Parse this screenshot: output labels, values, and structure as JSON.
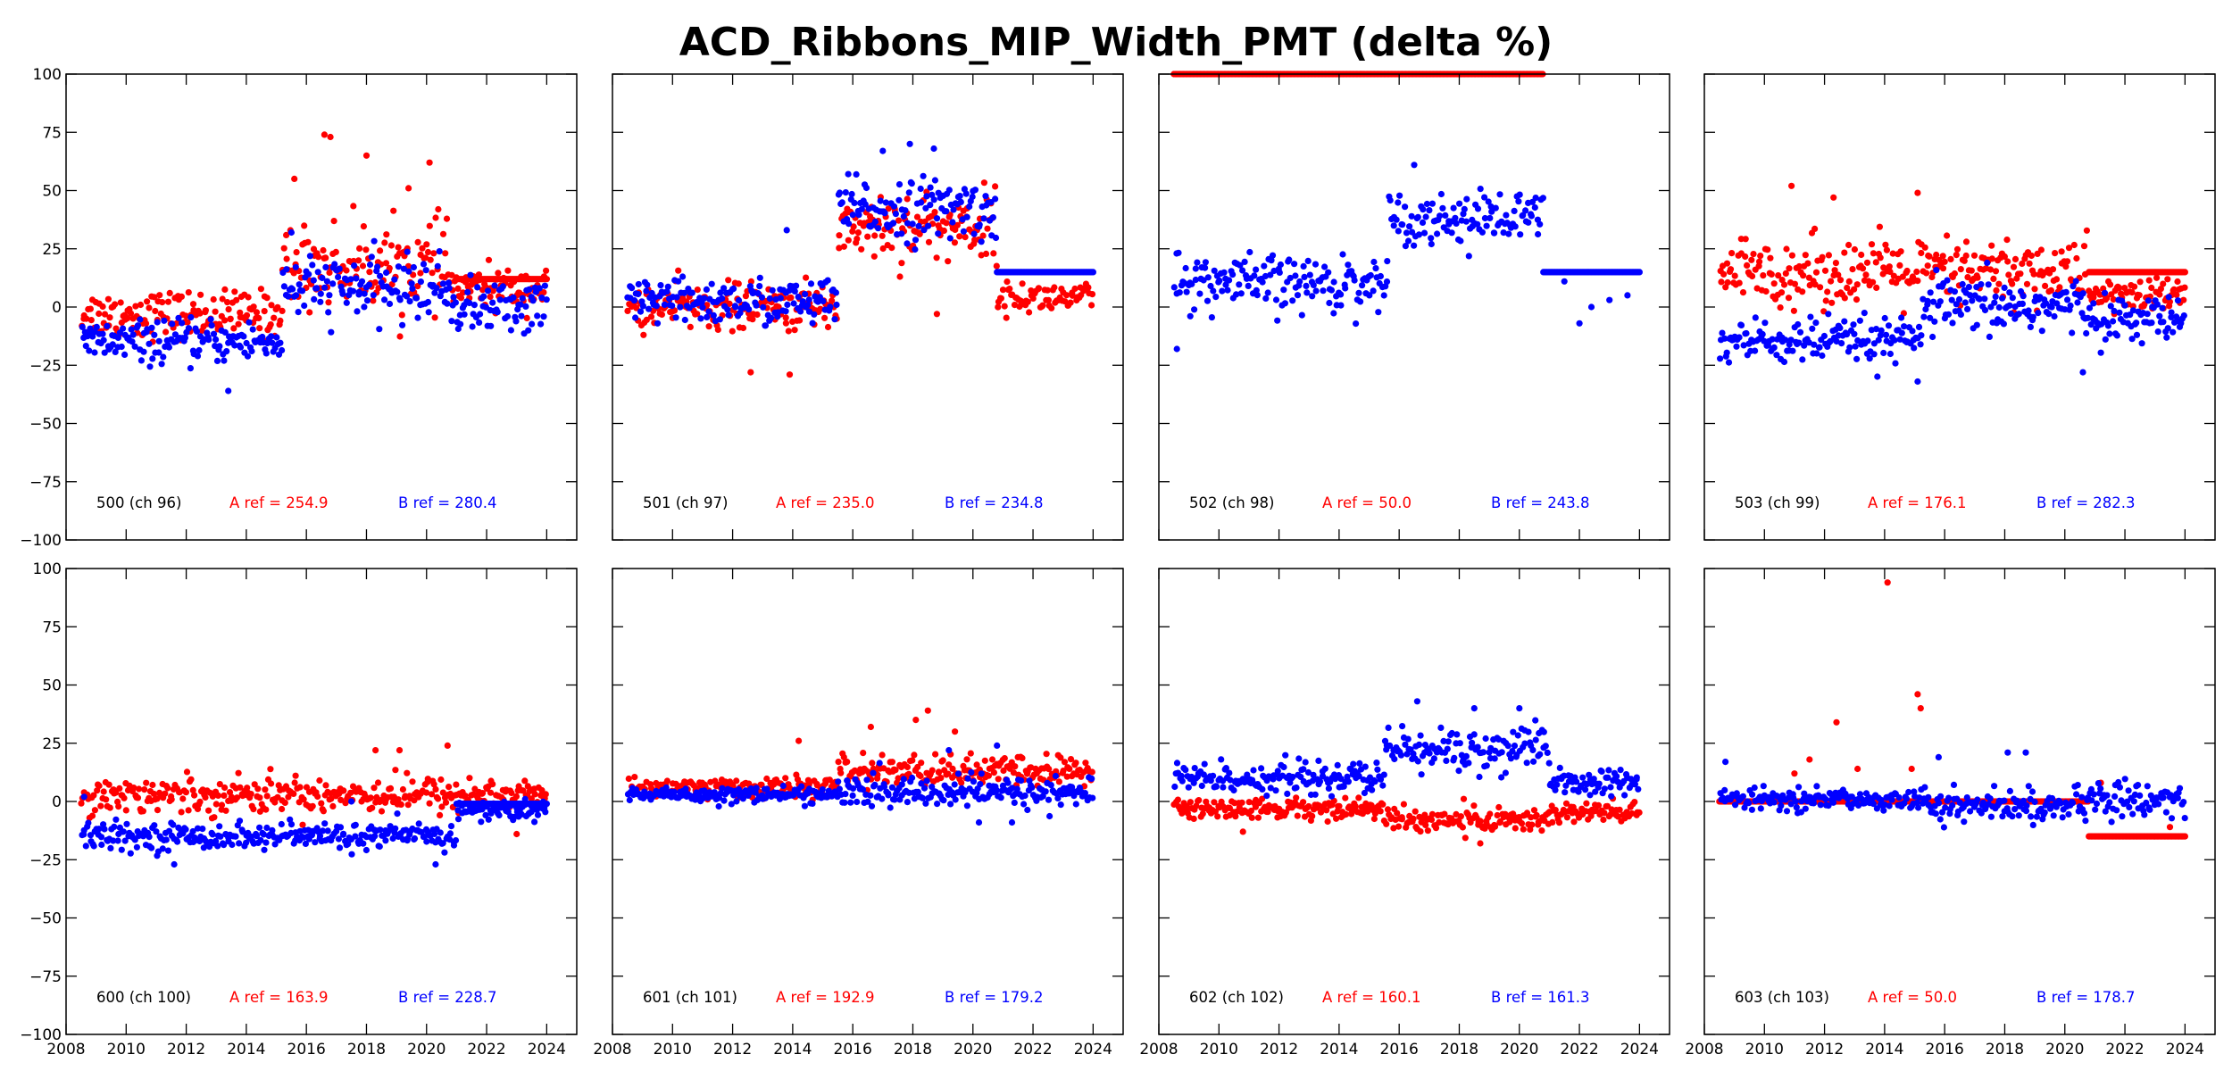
{
  "chart_data": {
    "type": "scatter",
    "title": "ACD_Ribbons_MIP_Width_PMT (delta %)",
    "layout": "2 rows x 4 columns of subplots",
    "xlim": [
      2008,
      2025
    ],
    "ylim": [
      -100,
      100
    ],
    "xticks": [
      2008,
      2010,
      2012,
      2014,
      2016,
      2018,
      2020,
      2022,
      2024
    ],
    "yticks": [
      -100,
      -75,
      -50,
      -25,
      0,
      25,
      50,
      75,
      100
    ],
    "xtick_labels_shown": "bottom row only",
    "ytick_labels_shown": "first column only",
    "grid": false,
    "series_colors": {
      "A": "#ff0000",
      "B": "#0000ff"
    },
    "panels": [
      {
        "label": "500 (ch 96)",
        "a_ref": "A ref = 254.9",
        "b_ref": "B ref = 280.4",
        "A": {
          "segments": [
            {
              "x": [
                2008.5,
                2015.2
              ],
              "mean": -3,
              "spread": 9
            },
            {
              "x": [
                2015.2,
                2020.8
              ],
              "mean": 18,
              "spread": 16
            },
            {
              "x": [
                2020.8,
                2024.0
              ],
              "mean": 8,
              "spread": 8
            }
          ],
          "flat": [
            {
              "x": [
                2021.0,
                2024.0
              ],
              "y": 12
            }
          ],
          "outliers": [
            [
              2016.6,
              74
            ],
            [
              2016.8,
              73
            ],
            [
              2018.0,
              65
            ],
            [
              2020.1,
              62
            ],
            [
              2015.6,
              55
            ],
            [
              2019.4,
              51
            ]
          ]
        },
        "B": {
          "segments": [
            {
              "x": [
                2008.5,
                2015.2
              ],
              "mean": -15,
              "spread": 8
            },
            {
              "x": [
                2015.2,
                2020.8
              ],
              "mean": 8,
              "spread": 12
            },
            {
              "x": [
                2020.8,
                2024.0
              ],
              "mean": 0,
              "spread": 10
            }
          ],
          "flat": [],
          "outliers": [
            [
              2013.4,
              -36
            ],
            [
              2015.5,
              32
            ]
          ]
        }
      },
      {
        "label": "501 (ch 97)",
        "a_ref": "A ref = 235.0",
        "b_ref": "B ref = 234.8",
        "A": {
          "segments": [
            {
              "x": [
                2008.5,
                2015.5
              ],
              "mean": 0,
              "spread": 9
            },
            {
              "x": [
                2015.5,
                2020.8
              ],
              "mean": 35,
              "spread": 14
            },
            {
              "x": [
                2020.8,
                2024.0
              ],
              "mean": 4,
              "spread": 6
            }
          ],
          "flat": [],
          "outliers": [
            [
              2012.6,
              -28
            ],
            [
              2013.9,
              -29
            ],
            [
              2018.8,
              -3
            ]
          ]
        },
        "B": {
          "segments": [
            {
              "x": [
                2008.5,
                2015.5
              ],
              "mean": 2,
              "spread": 9
            },
            {
              "x": [
                2015.5,
                2020.8
              ],
              "mean": 42,
              "spread": 12
            }
          ],
          "flat": [
            {
              "x": [
                2020.8,
                2024.0
              ],
              "y": 15
            }
          ],
          "outliers": [
            [
              2017.9,
              70
            ],
            [
              2017.0,
              67
            ],
            [
              2018.7,
              68
            ],
            [
              2013.8,
              33
            ]
          ]
        }
      },
      {
        "label": "502 (ch 98)",
        "a_ref": "A ref = 50.0",
        "b_ref": "B ref = 243.8",
        "A": {
          "segments": [],
          "flat": [
            {
              "x": [
                2008.5,
                2020.8
              ],
              "y": 100
            }
          ],
          "outliers": []
        },
        "B": {
          "segments": [
            {
              "x": [
                2008.5,
                2015.6
              ],
              "mean": 10,
              "spread": 11
            },
            {
              "x": [
                2015.6,
                2020.8
              ],
              "mean": 38,
              "spread": 10
            }
          ],
          "flat": [
            {
              "x": [
                2020.8,
                2024.0
              ],
              "y": 15
            }
          ],
          "outliers": [
            [
              2008.6,
              -18
            ],
            [
              2016.5,
              61
            ],
            [
              2021.5,
              11
            ],
            [
              2022.0,
              -7
            ],
            [
              2022.4,
              0
            ],
            [
              2023.0,
              3
            ],
            [
              2023.6,
              5
            ]
          ]
        }
      },
      {
        "label": "503 (ch 99)",
        "a_ref": "A ref = 176.1",
        "b_ref": "B ref = 282.3",
        "A": {
          "segments": [
            {
              "x": [
                2008.5,
                2020.8
              ],
              "mean": 15,
              "spread": 13
            },
            {
              "x": [
                2020.8,
                2024.0
              ],
              "mean": 5,
              "spread": 7
            }
          ],
          "flat": [
            {
              "x": [
                2020.8,
                2024.0
              ],
              "y": 15
            }
          ],
          "outliers": [
            [
              2010.9,
              52
            ],
            [
              2015.1,
              49
            ],
            [
              2012.3,
              47
            ]
          ]
        },
        "B": {
          "segments": [
            {
              "x": [
                2008.5,
                2015.2
              ],
              "mean": -15,
              "spread": 9
            },
            {
              "x": [
                2015.2,
                2020.8
              ],
              "mean": 0,
              "spread": 11
            },
            {
              "x": [
                2020.8,
                2024.0
              ],
              "mean": -5,
              "spread": 8
            }
          ],
          "flat": [],
          "outliers": [
            [
              2015.1,
              -32
            ],
            [
              2020.6,
              -28
            ]
          ]
        }
      },
      {
        "label": "600 (ch 100)",
        "a_ref": "A ref = 163.9",
        "b_ref": "B ref = 228.7",
        "A": {
          "segments": [
            {
              "x": [
                2008.5,
                2024.0
              ],
              "mean": 3,
              "spread": 7
            }
          ],
          "flat": [],
          "outliers": [
            [
              2020.7,
              24
            ],
            [
              2018.3,
              22
            ],
            [
              2019.1,
              22
            ],
            [
              2023.0,
              -14
            ]
          ]
        },
        "B": {
          "segments": [
            {
              "x": [
                2008.5,
                2021.0
              ],
              "mean": -15,
              "spread": 5
            },
            {
              "x": [
                2021.0,
                2024.0
              ],
              "mean": -4,
              "spread": 4
            }
          ],
          "flat": [
            {
              "x": [
                2021.0,
                2024.0
              ],
              "y": -1
            }
          ],
          "outliers": [
            [
              2011.6,
              -27
            ],
            [
              2020.3,
              -27
            ],
            [
              2008.6,
              2
            ],
            [
              2017.5,
              0
            ]
          ]
        }
      },
      {
        "label": "601 (ch 101)",
        "a_ref": "A ref = 192.9",
        "b_ref": "B ref = 179.2",
        "A": {
          "segments": [
            {
              "x": [
                2008.5,
                2015.5
              ],
              "mean": 6,
              "spread": 4
            },
            {
              "x": [
                2015.5,
                2024.0
              ],
              "mean": 13,
              "spread": 6
            }
          ],
          "flat": [],
          "outliers": [
            [
              2018.5,
              39
            ],
            [
              2018.1,
              35
            ],
            [
              2016.6,
              32
            ],
            [
              2019.4,
              30
            ],
            [
              2014.2,
              26
            ]
          ]
        },
        "B": {
          "segments": [
            {
              "x": [
                2008.5,
                2015.5
              ],
              "mean": 3,
              "spread": 3
            },
            {
              "x": [
                2015.5,
                2024.0
              ],
              "mean": 4,
              "spread": 6
            }
          ],
          "flat": [],
          "outliers": [
            [
              2020.8,
              24
            ],
            [
              2019.2,
              22
            ],
            [
              2020.2,
              -9
            ],
            [
              2021.3,
              -9
            ]
          ]
        }
      },
      {
        "label": "602 (ch 102)",
        "a_ref": "A ref = 160.1",
        "b_ref": "B ref = 161.3",
        "A": {
          "segments": [
            {
              "x": [
                2008.5,
                2015.5
              ],
              "mean": -3,
              "spread": 4
            },
            {
              "x": [
                2015.5,
                2021.0
              ],
              "mean": -8,
              "spread": 5
            },
            {
              "x": [
                2021.0,
                2024.0
              ],
              "mean": -5,
              "spread": 5
            }
          ],
          "flat": [],
          "outliers": [
            [
              2018.7,
              -18
            ],
            [
              2010.8,
              -13
            ]
          ]
        },
        "B": {
          "segments": [
            {
              "x": [
                2008.5,
                2015.5
              ],
              "mean": 10,
              "spread": 6
            },
            {
              "x": [
                2015.5,
                2021.0
              ],
              "mean": 22,
              "spread": 9
            },
            {
              "x": [
                2021.0,
                2024.0
              ],
              "mean": 8,
              "spread": 5
            }
          ],
          "flat": [],
          "outliers": [
            [
              2016.6,
              43
            ],
            [
              2018.5,
              40
            ],
            [
              2020.0,
              40
            ]
          ]
        }
      },
      {
        "label": "603 (ch 103)",
        "a_ref": "A ref = 50.0",
        "b_ref": "B ref = 178.7",
        "A": {
          "segments": [],
          "flat": [
            {
              "x": [
                2008.5,
                2020.8
              ],
              "y": 0
            },
            {
              "x": [
                2020.8,
                2024.0
              ],
              "y": -15
            }
          ],
          "outliers": [
            [
              2014.1,
              94
            ],
            [
              2015.1,
              46
            ],
            [
              2015.2,
              40
            ],
            [
              2012.4,
              34
            ],
            [
              2011.5,
              18
            ],
            [
              2011.0,
              12
            ],
            [
              2014.9,
              14
            ],
            [
              2013.1,
              14
            ],
            [
              2021.2,
              8
            ],
            [
              2023.5,
              -11
            ]
          ]
        },
        "B": {
          "segments": [
            {
              "x": [
                2008.5,
                2015.5
              ],
              "mean": 1,
              "spread": 4
            },
            {
              "x": [
                2015.5,
                2020.8
              ],
              "mean": -2,
              "spread": 6
            },
            {
              "x": [
                2020.8,
                2024.0
              ],
              "mean": 1,
              "spread": 7
            }
          ],
          "flat": [],
          "outliers": [
            [
              2018.7,
              21
            ],
            [
              2018.1,
              21
            ],
            [
              2015.8,
              19
            ],
            [
              2008.7,
              17
            ]
          ]
        }
      }
    ]
  }
}
